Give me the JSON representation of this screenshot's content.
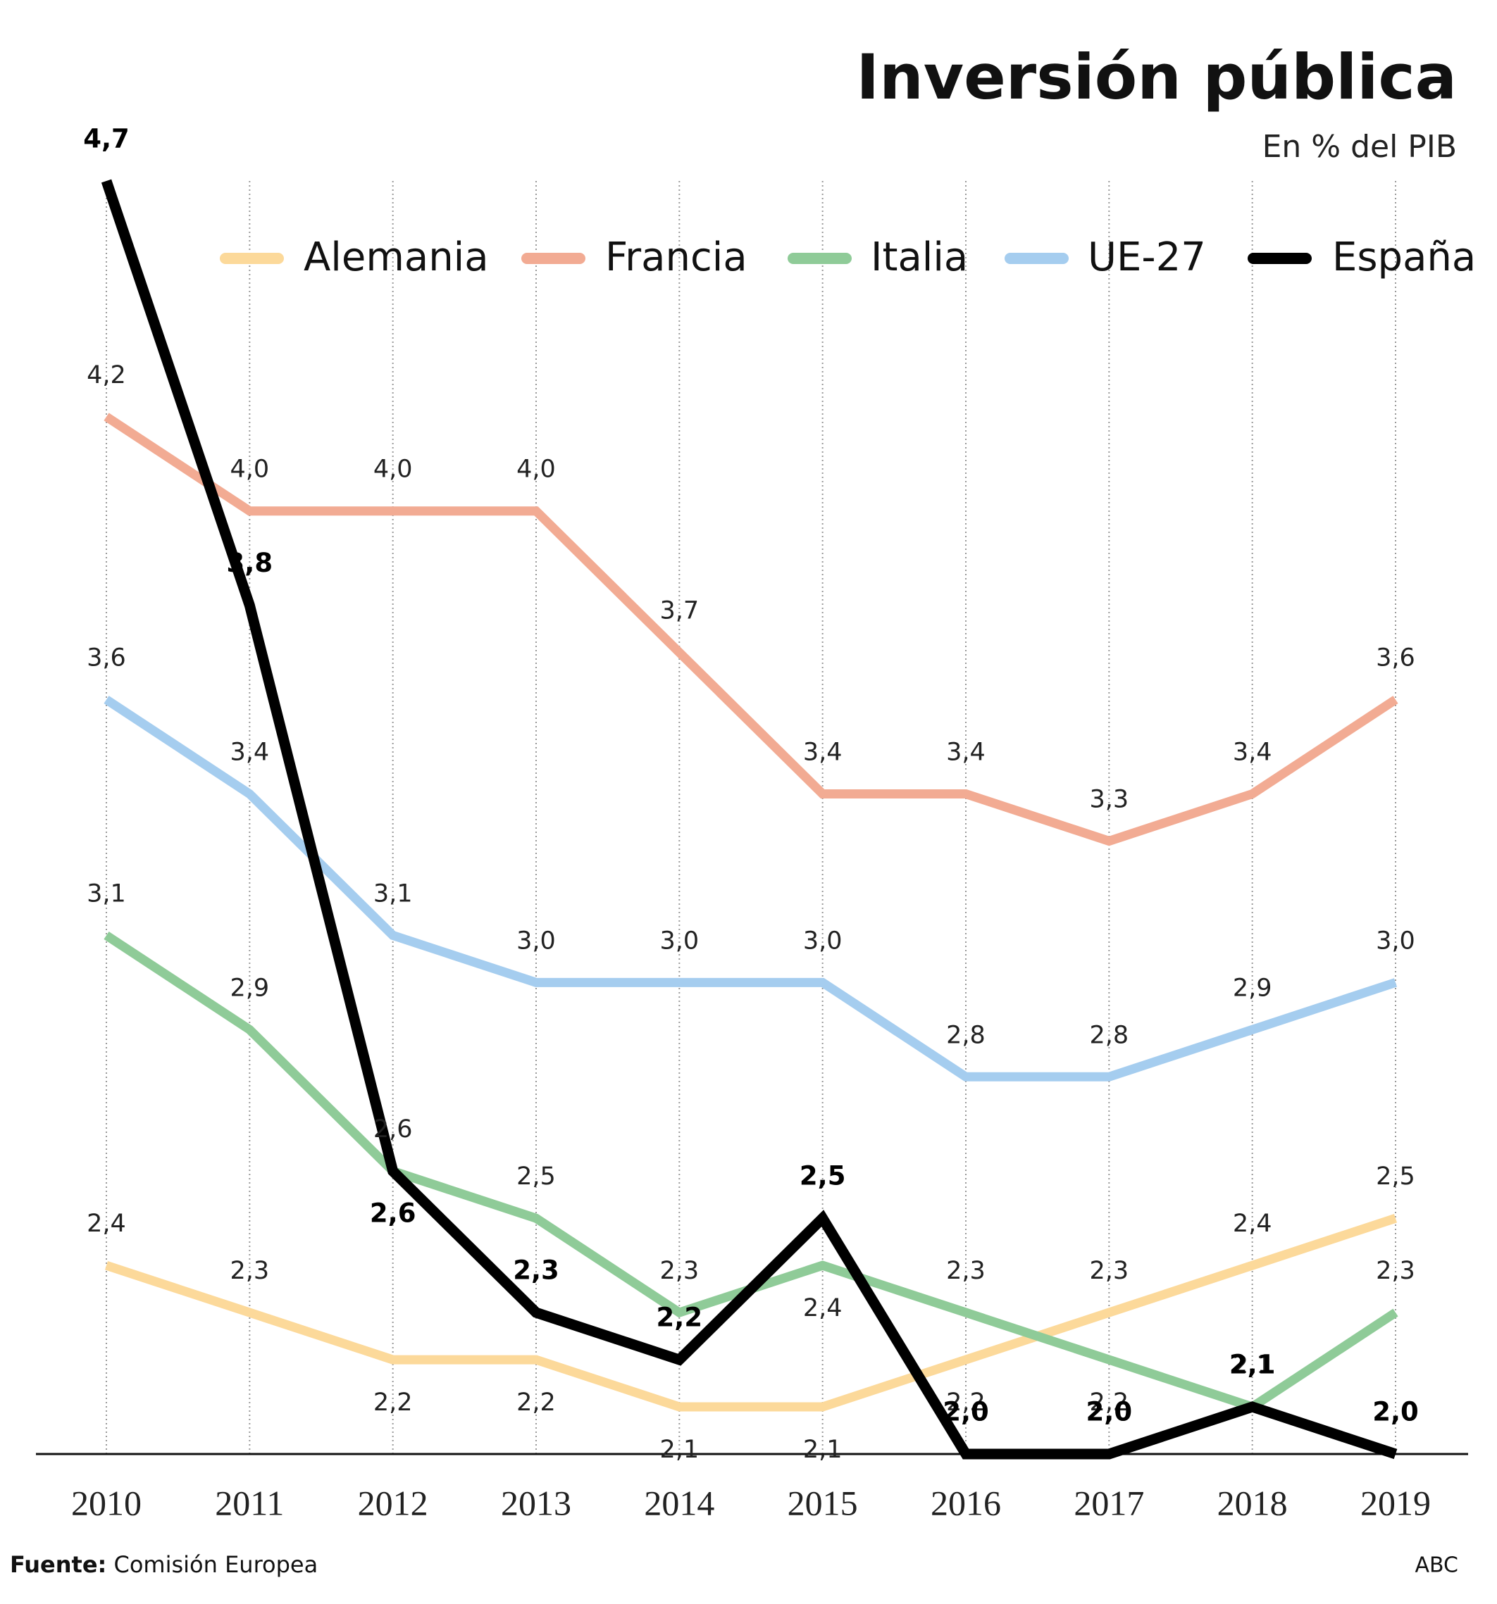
{
  "chart_data": {
    "type": "line",
    "title": "Inversión pública",
    "subtitle": "En % del PIB",
    "source_label": "Fuente:",
    "source": "Comisión Europea",
    "credit": "ABC",
    "categories": [
      "2010",
      "2011",
      "2012",
      "2013",
      "2014",
      "2015",
      "2016",
      "2017",
      "2018",
      "2019"
    ],
    "ylim": [
      2.0,
      4.7
    ],
    "series": [
      {
        "name": "Alemania",
        "color": "#fcd99a",
        "values": [
          2.4,
          2.3,
          2.2,
          2.2,
          2.1,
          2.1,
          2.2,
          2.3,
          2.4,
          2.5
        ],
        "value_labels": [
          "2,4",
          "2,3",
          "2,2",
          "2,2",
          "2,1",
          "2,1",
          "2,2",
          "2,3",
          "2,4",
          "2,5"
        ]
      },
      {
        "name": "Francia",
        "color": "#f2ab93",
        "values": [
          4.2,
          4.0,
          4.0,
          4.0,
          3.7,
          3.4,
          3.4,
          3.3,
          3.4,
          3.6
        ],
        "value_labels": [
          "4,2",
          "4,0",
          "4,0",
          "4,0",
          "3,7",
          "3,4",
          "3,4",
          "3,3",
          "3,4",
          "3,6"
        ]
      },
      {
        "name": "Italia",
        "color": "#8fcb98",
        "values": [
          3.1,
          2.9,
          2.6,
          2.5,
          2.3,
          2.4,
          2.3,
          2.2,
          2.1,
          2.3
        ],
        "value_labels": [
          "3,1",
          "2,9",
          "2,6",
          "2,5",
          "2,3",
          "2,4",
          "2,3",
          "2,2",
          "2,1",
          "2,3"
        ]
      },
      {
        "name": "UE-27",
        "color": "#a5cdef",
        "values": [
          3.6,
          3.4,
          3.1,
          3.0,
          3.0,
          3.0,
          2.8,
          2.8,
          2.9,
          3.0
        ],
        "value_labels": [
          "3,6",
          "3,4",
          "3,1",
          "3,0",
          "3,0",
          "3,0",
          "2,8",
          "2,8",
          "2,9",
          "3,0"
        ]
      },
      {
        "name": "España",
        "color": "#000000",
        "values": [
          4.7,
          3.8,
          2.6,
          2.3,
          2.2,
          2.5,
          2.0,
          2.0,
          2.1,
          2.0
        ],
        "value_labels": [
          "4,7",
          "3,8",
          "2,6",
          "2,3",
          "2,2",
          "2,5",
          "2,0",
          "2,0",
          "2,1",
          "2,0"
        ]
      }
    ]
  }
}
